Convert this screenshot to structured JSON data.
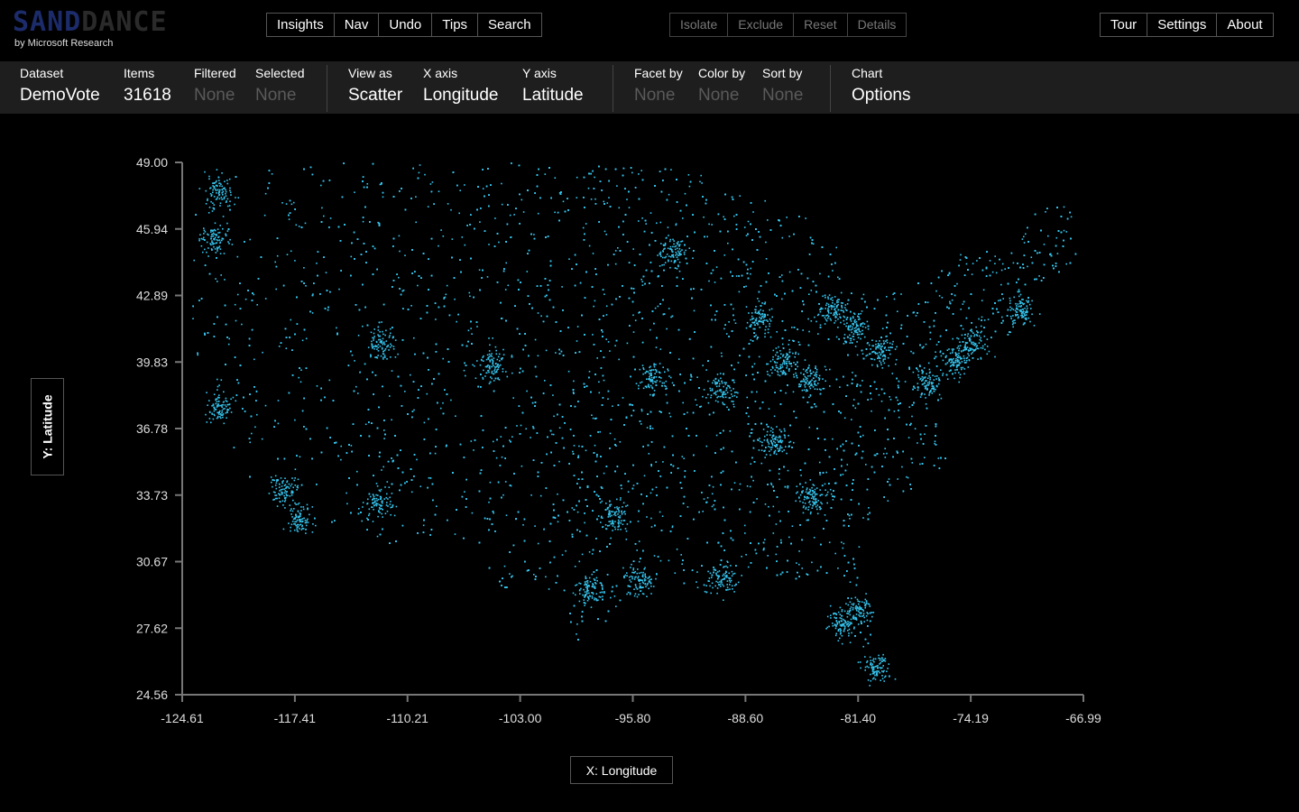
{
  "logo": {
    "word_sand": "SAND",
    "word_dance": "DANCE",
    "subtitle": "by Microsoft Research"
  },
  "toolbar_left": [
    "Insights",
    "Nav",
    "Undo",
    "Tips",
    "Search"
  ],
  "toolbar_middle": [
    "Isolate",
    "Exclude",
    "Reset",
    "Details"
  ],
  "toolbar_right": [
    "Tour",
    "Settings",
    "About"
  ],
  "selectors": {
    "dataset": {
      "label": "Dataset",
      "value": "DemoVote"
    },
    "items": {
      "label": "Items",
      "value": "31618"
    },
    "filtered": {
      "label": "Filtered",
      "value": "None"
    },
    "selected": {
      "label": "Selected",
      "value": "None"
    },
    "view_as": {
      "label": "View as",
      "value": "Scatter"
    },
    "x_axis": {
      "label": "X axis",
      "value": "Longitude"
    },
    "y_axis": {
      "label": "Y axis",
      "value": "Latitude"
    },
    "facet_by": {
      "label": "Facet by",
      "value": "None"
    },
    "color_by": {
      "label": "Color by",
      "value": "None"
    },
    "sort_by": {
      "label": "Sort by",
      "value": "None"
    },
    "chart": {
      "label": "Chart",
      "value": "Options"
    }
  },
  "axis_titles": {
    "y": "Y: Latitude",
    "x": "X: Longitude"
  },
  "colors": {
    "point": "#35c6ef",
    "axis": "#777777",
    "background": "#000000",
    "toolbar_bg": "#1e1e1e"
  },
  "chart_data": {
    "type": "scatter",
    "xlabel": "X: Longitude",
    "ylabel": "Y: Latitude",
    "xlim": [
      -124.61,
      -66.99
    ],
    "ylim": [
      24.56,
      49.0
    ],
    "x_ticks": [
      "-124.61",
      "-117.41",
      "-110.21",
      "-103.00",
      "-95.80",
      "-88.60",
      "-81.40",
      "-74.19",
      "-66.99"
    ],
    "y_ticks": [
      "49.00",
      "45.94",
      "42.89",
      "39.83",
      "36.78",
      "33.73",
      "30.67",
      "27.62",
      "24.56"
    ],
    "point_count": 31618,
    "grid": false,
    "hotspots": [
      {
        "lon": -122.3,
        "lat": 47.6
      },
      {
        "lon": -122.6,
        "lat": 45.5
      },
      {
        "lon": -122.2,
        "lat": 37.8
      },
      {
        "lon": -118.2,
        "lat": 34.0
      },
      {
        "lon": -117.1,
        "lat": 32.7
      },
      {
        "lon": -112.0,
        "lat": 33.4
      },
      {
        "lon": -111.9,
        "lat": 40.7
      },
      {
        "lon": -104.9,
        "lat": 39.7
      },
      {
        "lon": -97.0,
        "lat": 32.8
      },
      {
        "lon": -95.4,
        "lat": 29.8
      },
      {
        "lon": -98.5,
        "lat": 29.4
      },
      {
        "lon": -93.3,
        "lat": 44.9
      },
      {
        "lon": -87.7,
        "lat": 41.9
      },
      {
        "lon": -90.2,
        "lat": 38.6
      },
      {
        "lon": -94.6,
        "lat": 39.1
      },
      {
        "lon": -83.0,
        "lat": 42.3
      },
      {
        "lon": -84.4,
        "lat": 33.7
      },
      {
        "lon": -80.2,
        "lat": 25.8
      },
      {
        "lon": -81.4,
        "lat": 28.5
      },
      {
        "lon": -82.5,
        "lat": 27.9
      },
      {
        "lon": -74.0,
        "lat": 40.7
      },
      {
        "lon": -75.2,
        "lat": 39.9
      },
      {
        "lon": -77.0,
        "lat": 38.9
      },
      {
        "lon": -71.1,
        "lat": 42.3
      },
      {
        "lon": -80.0,
        "lat": 40.4
      },
      {
        "lon": -81.7,
        "lat": 41.5
      },
      {
        "lon": -86.2,
        "lat": 39.8
      },
      {
        "lon": -84.5,
        "lat": 39.1
      },
      {
        "lon": -86.8,
        "lat": 36.2
      },
      {
        "lon": -90.1,
        "lat": 29.9
      }
    ]
  }
}
